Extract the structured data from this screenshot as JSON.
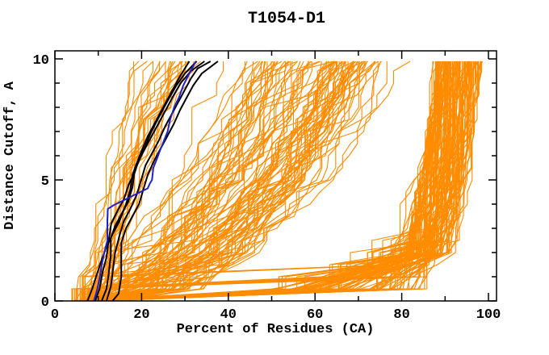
{
  "window": {
    "title": "T1054-D1"
  },
  "chart_data": {
    "type": "line",
    "title": "T1054-D1",
    "xlabel": "Percent of Residues (CA)",
    "ylabel": "Distance Cutoff, A",
    "xlim": [
      0,
      102
    ],
    "ylim": [
      0,
      10.33
    ],
    "grid": false,
    "legend": "none",
    "x_major_ticks": [
      0,
      20,
      40,
      60,
      80,
      100
    ],
    "x_minor_ticks": [
      10,
      30,
      50,
      70,
      90
    ],
    "y_major_ticks": [
      0,
      5,
      10
    ],
    "y_minor_ticks": [
      1,
      2,
      3,
      4,
      6,
      7,
      8,
      9
    ],
    "colors": {
      "ensemble": "#ff8c00",
      "highlight": "#000000",
      "reference": "#2121cc",
      "frame": "#000000"
    },
    "series": [
      {
        "name": "black-model-1",
        "color": "#000000",
        "points": [
          [
            7.5,
            0
          ],
          [
            8.6,
            0.5
          ],
          [
            9.5,
            1.0
          ],
          [
            10.6,
            1.6
          ],
          [
            11.8,
            2.2
          ],
          [
            13.4,
            2.8
          ],
          [
            14.9,
            3.3
          ],
          [
            16.4,
            4.0
          ],
          [
            17.4,
            4.6
          ],
          [
            17.9,
            5.2
          ],
          [
            18.9,
            5.7
          ],
          [
            20.0,
            6.2
          ],
          [
            21.4,
            6.8
          ],
          [
            22.9,
            7.3
          ],
          [
            24.4,
            7.8
          ],
          [
            25.9,
            8.3
          ],
          [
            27.4,
            8.8
          ],
          [
            28.9,
            9.3
          ],
          [
            31.0,
            9.9
          ]
        ]
      },
      {
        "name": "black-model-2",
        "color": "#000000",
        "points": [
          [
            9.3,
            0
          ],
          [
            10.3,
            0.5
          ],
          [
            11.0,
            1.2
          ],
          [
            11.9,
            1.8
          ],
          [
            12.4,
            2.5
          ],
          [
            13.0,
            3.2
          ],
          [
            14.4,
            3.7
          ],
          [
            15.9,
            4.2
          ],
          [
            17.0,
            4.8
          ],
          [
            18.4,
            5.3
          ],
          [
            19.5,
            5.9
          ],
          [
            20.9,
            6.4
          ],
          [
            22.0,
            6.9
          ],
          [
            23.4,
            7.4
          ],
          [
            24.9,
            7.9
          ],
          [
            26.4,
            8.4
          ],
          [
            28.0,
            8.9
          ],
          [
            30.0,
            9.4
          ],
          [
            32.7,
            9.9
          ]
        ]
      },
      {
        "name": "black-model-3",
        "color": "#000000",
        "points": [
          [
            10.8,
            0
          ],
          [
            11.9,
            0.5
          ],
          [
            12.4,
            1.1
          ],
          [
            12.9,
            1.9
          ],
          [
            12.9,
            2.6
          ],
          [
            13.9,
            3.1
          ],
          [
            15.4,
            3.6
          ],
          [
            16.9,
            4.1
          ],
          [
            17.9,
            4.7
          ],
          [
            18.4,
            5.4
          ],
          [
            19.9,
            6.0
          ],
          [
            21.4,
            6.5
          ],
          [
            22.9,
            7.0
          ],
          [
            24.4,
            7.5
          ],
          [
            25.9,
            8.0
          ],
          [
            27.4,
            8.5
          ],
          [
            29.0,
            9.0
          ],
          [
            31.4,
            9.5
          ],
          [
            34.5,
            9.9
          ]
        ]
      },
      {
        "name": "black-model-4",
        "color": "#000000",
        "points": [
          [
            11.9,
            0
          ],
          [
            12.9,
            0.6
          ],
          [
            13.4,
            1.3
          ],
          [
            13.9,
            2.0
          ],
          [
            14.9,
            2.7
          ],
          [
            15.9,
            3.3
          ],
          [
            17.4,
            3.8
          ],
          [
            18.9,
            4.4
          ],
          [
            19.9,
            5.0
          ],
          [
            20.9,
            5.6
          ],
          [
            22.4,
            6.1
          ],
          [
            23.9,
            6.6
          ],
          [
            25.4,
            7.2
          ],
          [
            26.9,
            7.7
          ],
          [
            28.4,
            8.2
          ],
          [
            29.9,
            8.7
          ],
          [
            31.4,
            9.2
          ],
          [
            32.9,
            9.6
          ],
          [
            35.9,
            9.9
          ]
        ]
      },
      {
        "name": "black-model-5",
        "color": "#000000",
        "points": [
          [
            13.3,
            0
          ],
          [
            14.7,
            0.3
          ],
          [
            15.3,
            1.0
          ],
          [
            15.3,
            2.4
          ],
          [
            16.4,
            3.0
          ],
          [
            17.9,
            3.5
          ],
          [
            19.4,
            4.0
          ],
          [
            20.4,
            4.6
          ],
          [
            21.4,
            5.2
          ],
          [
            22.9,
            5.8
          ],
          [
            24.4,
            6.3
          ],
          [
            25.9,
            6.8
          ],
          [
            27.4,
            7.3
          ],
          [
            28.9,
            7.9
          ],
          [
            30.4,
            8.4
          ],
          [
            31.9,
            8.9
          ],
          [
            33.9,
            9.4
          ],
          [
            37.6,
            9.9
          ]
        ]
      },
      {
        "name": "blue-model",
        "color": "#2121cc",
        "points": [
          [
            9.0,
            0
          ],
          [
            9.8,
            0.5
          ],
          [
            10.4,
            1.0
          ],
          [
            10.8,
            1.5
          ],
          [
            11.4,
            2.0
          ],
          [
            12.1,
            2.5
          ],
          [
            12.1,
            3.3
          ],
          [
            12.2,
            3.8
          ],
          [
            13.5,
            3.95
          ],
          [
            21.4,
            4.65
          ],
          [
            21.9,
            4.85
          ],
          [
            22.4,
            5.0
          ],
          [
            22.7,
            5.5
          ],
          [
            23.6,
            5.9
          ],
          [
            24.2,
            6.2
          ],
          [
            25.1,
            6.6
          ],
          [
            26.0,
            7.0
          ],
          [
            26.6,
            7.5
          ],
          [
            27.5,
            8.0
          ],
          [
            28.6,
            8.4
          ],
          [
            29.6,
            8.9
          ],
          [
            31.0,
            9.4
          ],
          [
            32.5,
            9.9
          ]
        ]
      }
    ],
    "ensemble": {
      "name": "model-curves-ensemble",
      "color": "#ff8c00",
      "count": 232,
      "seed": 20541,
      "cutoff_step": 0.5,
      "cutoff_max": 9.9,
      "families": [
        {
          "id": "high-accuracy",
          "weight": 0.44,
          "start_pct": [
            3.5,
            12
          ],
          "early_pct": [
            50,
            85
          ],
          "final_pct": [
            88,
            98
          ]
        },
        {
          "id": "intermediate",
          "weight": 0.47,
          "start_pct": [
            5,
            15
          ],
          "final_pct_max": 97
        },
        {
          "id": "low-accuracy",
          "weight": 0.09,
          "start_pct": [
            4,
            10
          ],
          "final_pct": [
            18,
            40
          ]
        }
      ]
    }
  }
}
